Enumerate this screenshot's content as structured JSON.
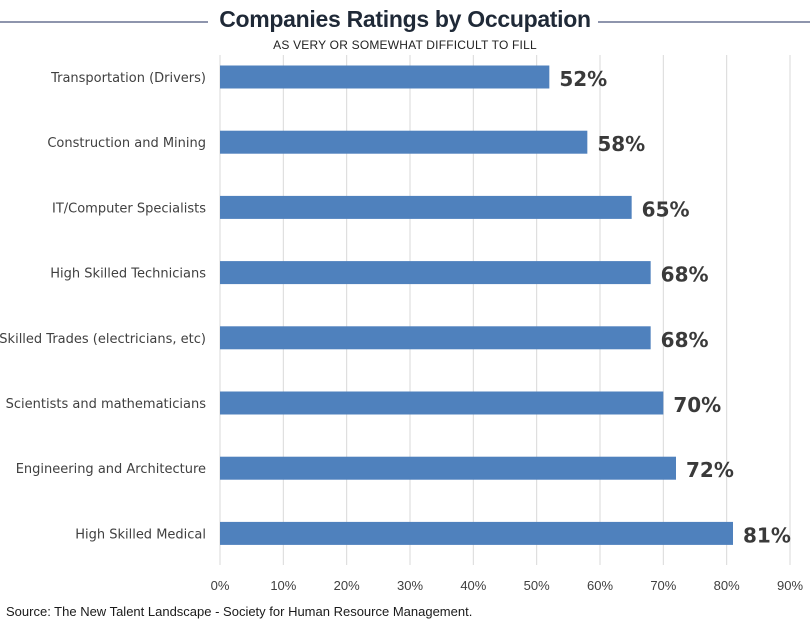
{
  "header": {
    "title": "Companies Ratings by Occupation",
    "subtitle": "AS VERY OR SOMEWHAT DIFFICULT TO FILL"
  },
  "footer": {
    "source": "Source: The New Talent Landscape - Society for Human Resource Management."
  },
  "colors": {
    "bar": "#4f81bd",
    "gridline": "#d9d9d9",
    "value_label": "#3a3a3a",
    "category_label": "#404040",
    "rule": "#8e95ad"
  },
  "chart_data": {
    "type": "bar",
    "orientation": "horizontal",
    "title": "Companies Ratings by Occupation",
    "subtitle": "AS VERY OR SOMEWHAT DIFFICULT TO FILL",
    "categories": [
      "Transportation (Drivers)",
      "Construction and Mining",
      "IT/Computer Specialists",
      "High Skilled Technicians",
      "Skilled Trades (electricians, etc)",
      "Scientists and mathematicians",
      "Engineering and Architecture",
      "High Skilled Medical"
    ],
    "values": [
      52,
      58,
      65,
      68,
      68,
      70,
      72,
      81
    ],
    "value_labels": [
      "52%",
      "58%",
      "65%",
      "68%",
      "68%",
      "70%",
      "72%",
      "81%"
    ],
    "xlim": [
      0,
      90
    ],
    "xticks": [
      0,
      10,
      20,
      30,
      40,
      50,
      60,
      70,
      80,
      90
    ],
    "xtick_labels": [
      "0%",
      "10%",
      "20%",
      "30%",
      "40%",
      "50%",
      "60%",
      "70%",
      "80%",
      "90%"
    ],
    "grid": true,
    "legend": "none"
  }
}
